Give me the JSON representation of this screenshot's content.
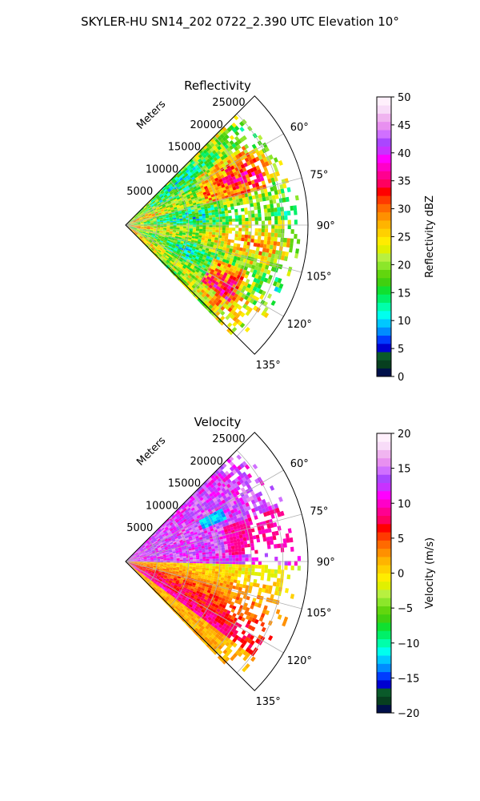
{
  "figure": {
    "suptitle": "SKYLER-HU  SN14_202  0722_2.390 UTC Elevation 10°"
  },
  "chart_data": [
    {
      "type": "heatmap",
      "projection": "polar-sector",
      "title": "Reflectivity",
      "radial_label": "Meters",
      "radial_ticks": [
        "5000",
        "10000",
        "15000",
        "20000",
        "25000"
      ],
      "radial_tick_values": [
        5000,
        10000,
        15000,
        20000,
        25000
      ],
      "rlim": [
        0,
        29000
      ],
      "theta_ticks": [
        "60°",
        "75°",
        "90°",
        "105°",
        "120°",
        "135°"
      ],
      "theta_tick_values": [
        60,
        75,
        90,
        105,
        120,
        135
      ],
      "theta_range": [
        45,
        135
      ],
      "colorbar": {
        "label": "Reflectivity dBZ",
        "range": [
          0,
          50
        ],
        "ticks": [
          "0",
          "5",
          "10",
          "15",
          "20",
          "25",
          "30",
          "35",
          "40",
          "45",
          "50"
        ],
        "tick_values": [
          0,
          5,
          10,
          15,
          20,
          25,
          30,
          35,
          40,
          45,
          50
        ],
        "colors": [
          "#00104a",
          "#073f1f",
          "#0a5a2a",
          "#0000d0",
          "#003cff",
          "#008cff",
          "#00c8ff",
          "#00ffee",
          "#00ffaa",
          "#00f068",
          "#10e030",
          "#40d010",
          "#62d60e",
          "#8ce62a",
          "#b8f040",
          "#e0f000",
          "#ffec00",
          "#ffd000",
          "#ffb400",
          "#ff9000",
          "#ff6a00",
          "#ff3a00",
          "#ff0000",
          "#ff0060",
          "#ff0090",
          "#ff00c8",
          "#ff00ff",
          "#c832ff",
          "#aa46ff",
          "#d070ff",
          "#e890f0",
          "#f0b4f0",
          "#f8dcf8",
          "#fff0fc"
        ]
      },
      "grid": true
    },
    {
      "type": "heatmap",
      "projection": "polar-sector",
      "title": "Velocity",
      "radial_label": "Meters",
      "radial_ticks": [
        "5000",
        "10000",
        "15000",
        "20000",
        "25000"
      ],
      "radial_tick_values": [
        5000,
        10000,
        15000,
        20000,
        25000
      ],
      "rlim": [
        0,
        29000
      ],
      "theta_ticks": [
        "60°",
        "75°",
        "90°",
        "105°",
        "120°",
        "135°"
      ],
      "theta_tick_values": [
        60,
        75,
        90,
        105,
        120,
        135
      ],
      "theta_range": [
        45,
        135
      ],
      "colorbar": {
        "label": "Velocity (m/s)",
        "range": [
          -20,
          20
        ],
        "ticks": [
          "−20",
          "−15",
          "−10",
          "−5",
          "0",
          "5",
          "10",
          "15",
          "20"
        ],
        "tick_values": [
          -20,
          -15,
          -10,
          -5,
          0,
          5,
          10,
          15,
          20
        ],
        "colors": [
          "#00104a",
          "#073f1f",
          "#0a5a2a",
          "#0000d0",
          "#003cff",
          "#008cff",
          "#00c8ff",
          "#00ffee",
          "#00ffaa",
          "#00f068",
          "#10e030",
          "#40d010",
          "#62d60e",
          "#8ce62a",
          "#b8f040",
          "#e0f000",
          "#ffec00",
          "#ffd000",
          "#ffb400",
          "#ff9000",
          "#ff6a00",
          "#ff3a00",
          "#ff0000",
          "#ff0060",
          "#ff0090",
          "#ff00c8",
          "#ff00ff",
          "#c832ff",
          "#aa46ff",
          "#d070ff",
          "#e890f0",
          "#f0b4f0",
          "#f8dcf8",
          "#fff0fc"
        ]
      },
      "grid": true
    }
  ]
}
